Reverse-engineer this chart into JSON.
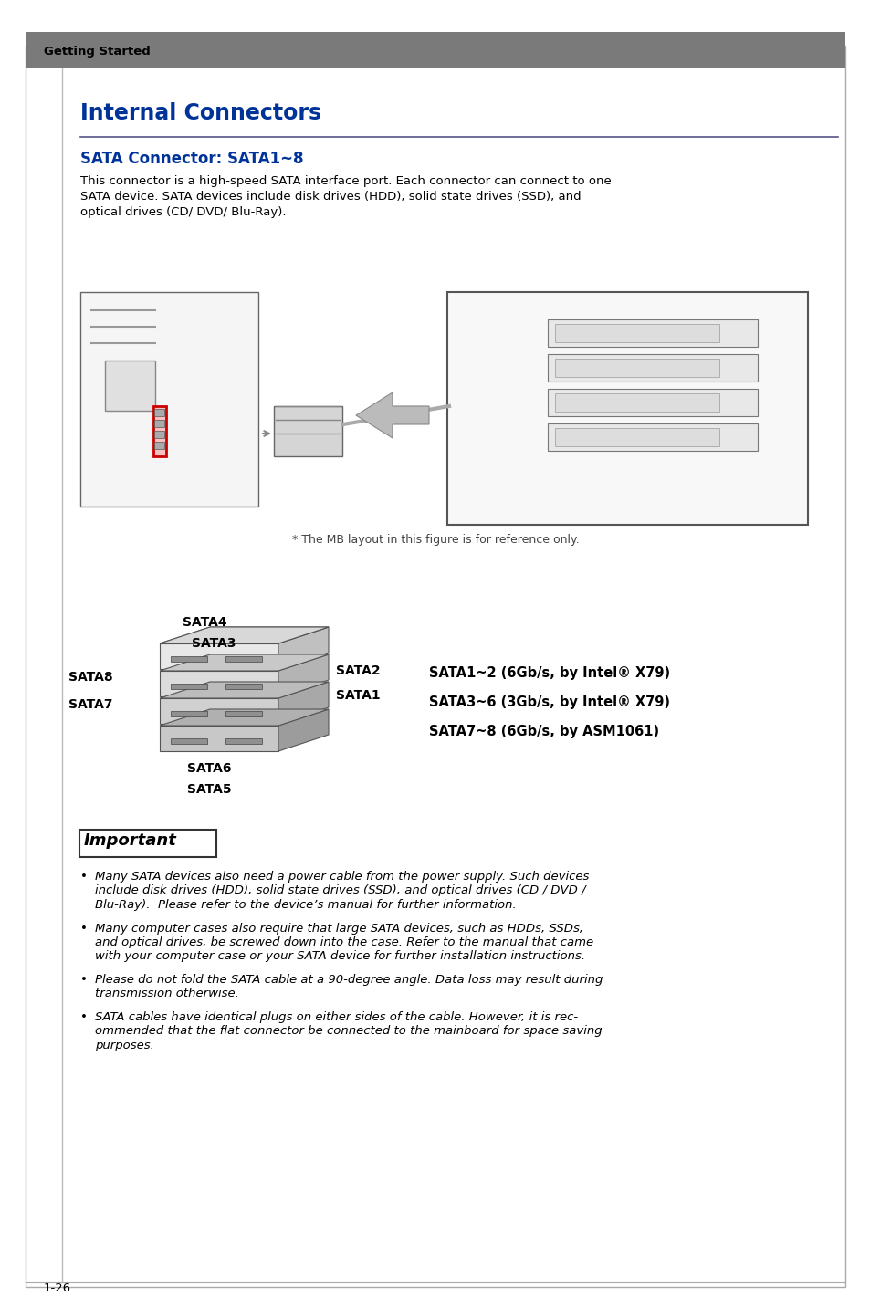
{
  "page_label": "Getting Started",
  "main_title": "Internal Connectors",
  "section_title": "SATA Connector: SATA1~8",
  "body_lines": [
    "This connector is a high-speed SATA interface port. Each connector can connect to one",
    "SATA device. SATA devices include disk drives (HDD), solid state drives (SSD), and",
    "optical drives (CD/ DVD/ Blu-Ray)."
  ],
  "figure_caption": "* The MB layout in this figure is for reference only.",
  "sata_label_SATA8": "SATA8",
  "sata_label_SATA7": "SATA7",
  "sata_label_SATA4": "SATA4",
  "sata_label_SATA3": "SATA3",
  "sata_label_SATA2": "SATA2",
  "sata_label_SATA1": "SATA1",
  "sata_label_SATA6": "SATA6",
  "sata_label_SATA5": "SATA5",
  "sata_specs": [
    "SATA1~2 (6Gb/s, by Intel® X79)",
    "SATA3~6 (3Gb/s, by Intel® X79)",
    "SATA7~8 (6Gb/s, by ASM1061)"
  ],
  "important_title": "Important",
  "bullet_points": [
    "Many SATA devices also need a power cable from the power supply. Such devices\ninclude disk drives (HDD), solid state drives (SSD), and optical drives (CD / DVD /\nBlu-Ray).  Please refer to the device’s manual for further information.",
    "Many computer cases also require that large SATA devices, such as HDDs, SSDs,\nand optical drives, be screwed down into the case. Refer to the manual that came\nwith your computer case or your SATA device for further installation instructions.",
    "Please do not fold the SATA cable at a 90-degree angle. Data loss may result during\ntransmission otherwise.",
    "SATA cables have identical plugs on either sides of the cable. However, it is rec-\nommended that the flat connector be connected to the mainboard for space saving\npurposes."
  ],
  "page_number": "1-26",
  "bg_color": "#ffffff",
  "header_bar_color": "#7a7a7a",
  "title_color": "#003399",
  "subtitle_color": "#003399",
  "border_color": "#aaaaaa",
  "text_color": "#000000",
  "line_color": "#555588"
}
